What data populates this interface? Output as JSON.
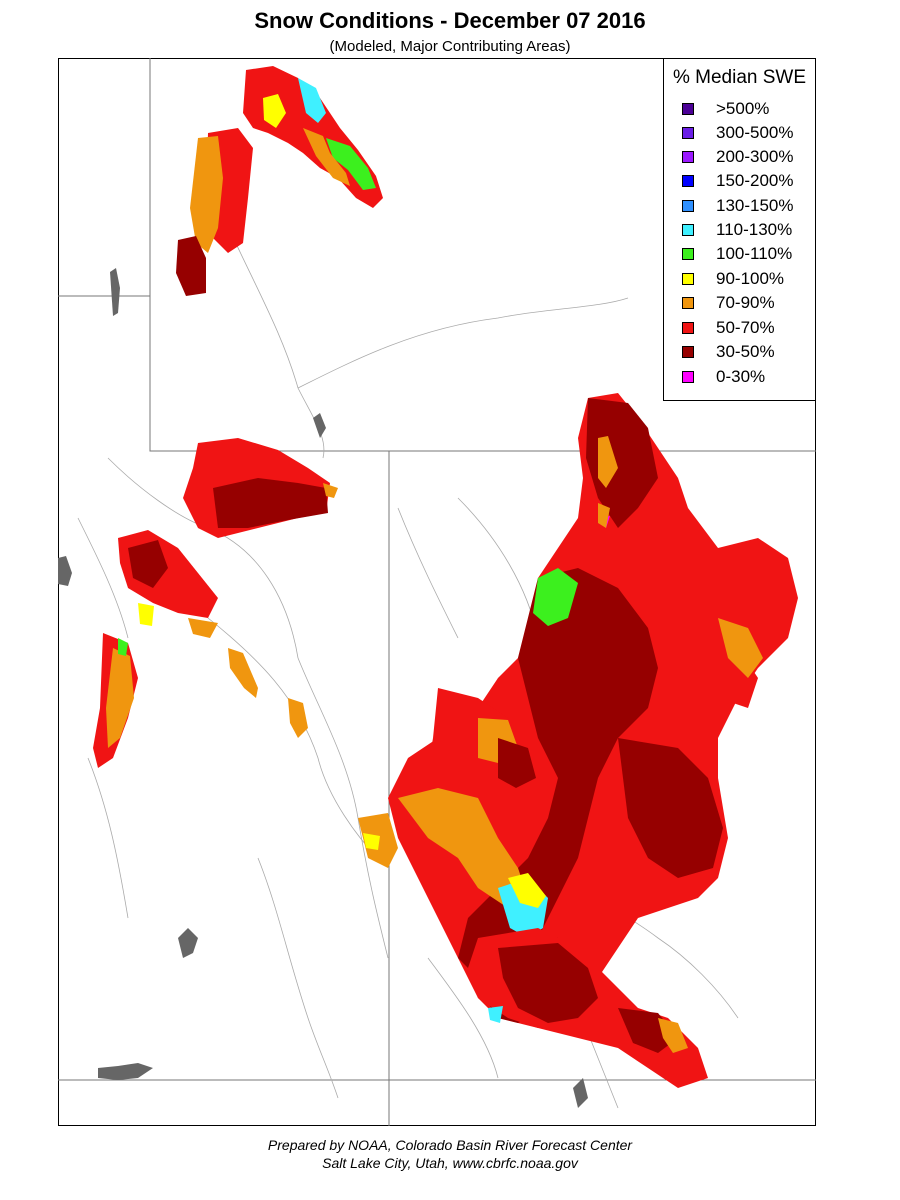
{
  "header": {
    "title": "Snow Conditions - December 07 2016",
    "subtitle": "(Modeled, Major Contributing Areas)"
  },
  "legend": {
    "title": "% Median SWE",
    "items": [
      {
        "label": ">500%",
        "color": "#4b0096"
      },
      {
        "label": "300-500%",
        "color": "#6a1ee6"
      },
      {
        "label": "200-300%",
        "color": "#9b19ff"
      },
      {
        "label": "150-200%",
        "color": "#0000ff"
      },
      {
        "label": "130-150%",
        "color": "#2f90ff"
      },
      {
        "label": "110-130%",
        "color": "#3ff0ff"
      },
      {
        "label": "100-110%",
        "color": "#3cf01e"
      },
      {
        "label": "90-100%",
        "color": "#ffff00"
      },
      {
        "label": "70-90%",
        "color": "#f0960f"
      },
      {
        "label": "50-70%",
        "color": "#f01414"
      },
      {
        "label": "30-50%",
        "color": "#960000"
      },
      {
        "label": "0-30%",
        "color": "#ff00ff"
      }
    ]
  },
  "footer": {
    "line1": "Prepared by NOAA, Colorado Basin River Forecast Center",
    "line2": "Salt Lake City, Utah, www.cbrfc.noaa.gov"
  }
}
